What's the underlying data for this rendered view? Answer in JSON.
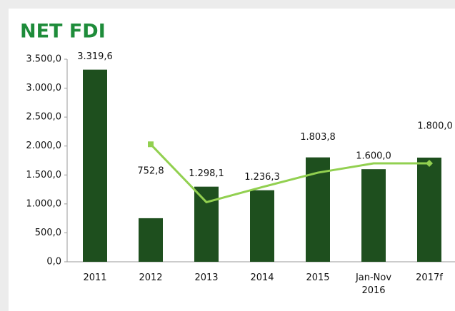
{
  "chart_data": {
    "type": "bar",
    "title": "NET FDI",
    "categories": [
      "2011",
      "2012",
      "2013",
      "2014",
      "2015",
      "Jan-Nov 2016",
      "2017f"
    ],
    "series": [
      {
        "type": "bar",
        "color": "#1e4f1e",
        "values": [
          3319.6,
          752.8,
          1298.1,
          1236.3,
          1803.8,
          1600.0,
          1800.0
        ],
        "value_labels": [
          "3.319,6",
          "752,8",
          "1.298,1",
          "1.236,3",
          "1.803,8",
          "1.600,0",
          "1.800,0"
        ]
      },
      {
        "type": "line",
        "color": "#92d050",
        "values": [
          null,
          2030,
          1030,
          1290,
          1540,
          1700,
          1700
        ]
      }
    ],
    "ylim": [
      0,
      3500
    ],
    "yticks": [
      {
        "value": 0,
        "label": "0,0"
      },
      {
        "value": 500,
        "label": "500,0"
      },
      {
        "value": 1000,
        "label": "1.000,0"
      },
      {
        "value": 1500,
        "label": "1.500,0"
      },
      {
        "value": 2000,
        "label": "2.000,0"
      },
      {
        "value": 2500,
        "label": "2.500,0"
      },
      {
        "value": 3000,
        "label": "3.000,0"
      },
      {
        "value": 3500,
        "label": "3.500,0"
      }
    ],
    "grid": false
  }
}
